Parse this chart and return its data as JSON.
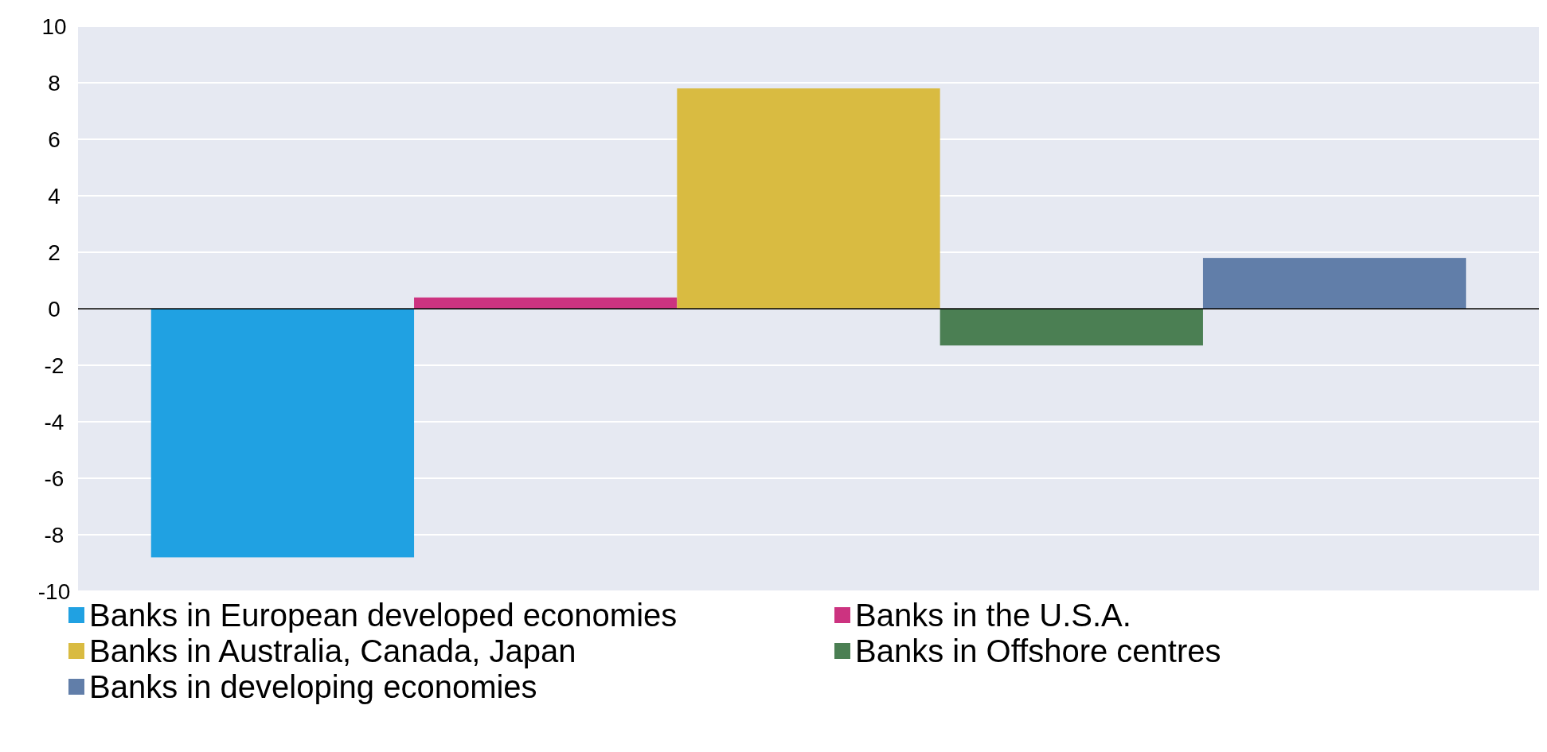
{
  "chart_data": {
    "type": "bar",
    "categories": [
      null
    ],
    "series": [
      {
        "name": "Banks in European developed economies",
        "color": "#20a1e2",
        "values": [
          -8.8
        ]
      },
      {
        "name": "Banks in the U.S.A.",
        "color": "#cc3380",
        "values": [
          0.4
        ]
      },
      {
        "name": "Banks in Australia, Canada, Japan",
        "color": "#d9bb41",
        "values": [
          7.8
        ]
      },
      {
        "name": "Banks in Offshore centres",
        "color": "#4b7f53",
        "values": [
          -1.3
        ]
      },
      {
        "name": "Banks in developing economies",
        "color": "#617ea9",
        "values": [
          1.8
        ]
      }
    ],
    "ylim": [
      -10,
      10
    ],
    "yticks": [
      -10,
      -8,
      -6,
      -4,
      -2,
      0,
      2,
      4,
      6,
      8,
      10
    ],
    "grid": "y",
    "legend": "bottom"
  }
}
